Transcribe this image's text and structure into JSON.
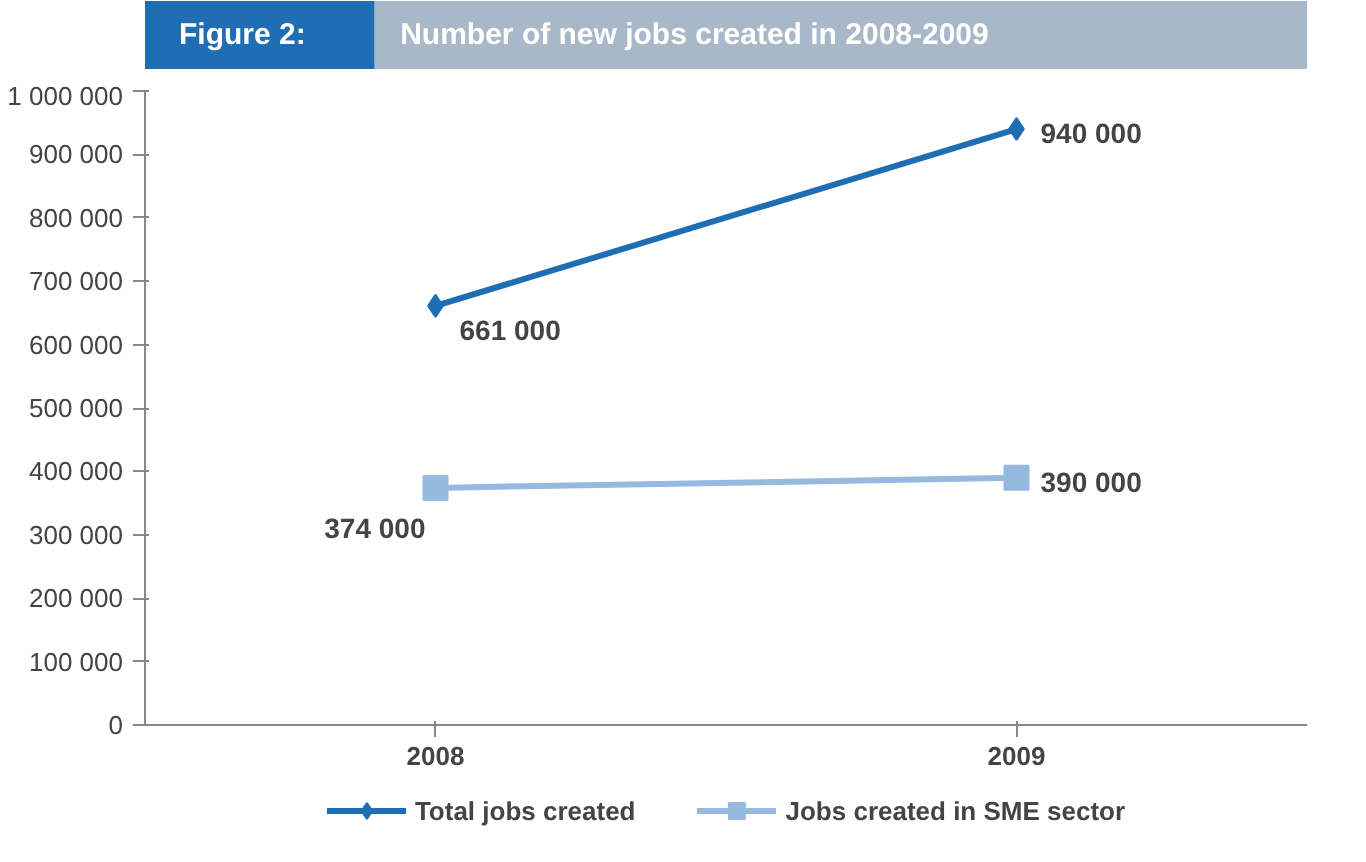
{
  "chart_data": {
    "type": "line",
    "title": "Figure 2:",
    "subtitle": "Number of new jobs created in 2008-2009",
    "categories": [
      "2008",
      "2009"
    ],
    "series": [
      {
        "name": "Total jobs created",
        "color": "#1f6db3",
        "values": [
          661000,
          940000
        ],
        "marker": "diamond",
        "value_labels": [
          "661 000",
          "940 000"
        ]
      },
      {
        "name": "Jobs created in SME sector",
        "color": "#95b9df",
        "values": [
          374000,
          390000
        ],
        "marker": "square",
        "value_labels": [
          "374 000",
          "390 000"
        ]
      }
    ],
    "ylim": [
      0,
      1000000
    ],
    "yticks": [
      {
        "value": 0,
        "label": "0"
      },
      {
        "value": 100000,
        "label": "100 000"
      },
      {
        "value": 200000,
        "label": "200 000"
      },
      {
        "value": 300000,
        "label": "300 000"
      },
      {
        "value": 400000,
        "label": "400 000"
      },
      {
        "value": 500000,
        "label": "500 000"
      },
      {
        "value": 600000,
        "label": "600 000"
      },
      {
        "value": 700000,
        "label": "700 000"
      },
      {
        "value": 800000,
        "label": "800 000"
      },
      {
        "value": 900000,
        "label": "900 000"
      },
      {
        "value": 1000000,
        "label": "1 000 000"
      }
    ],
    "grid": false,
    "legend": "bottom"
  }
}
